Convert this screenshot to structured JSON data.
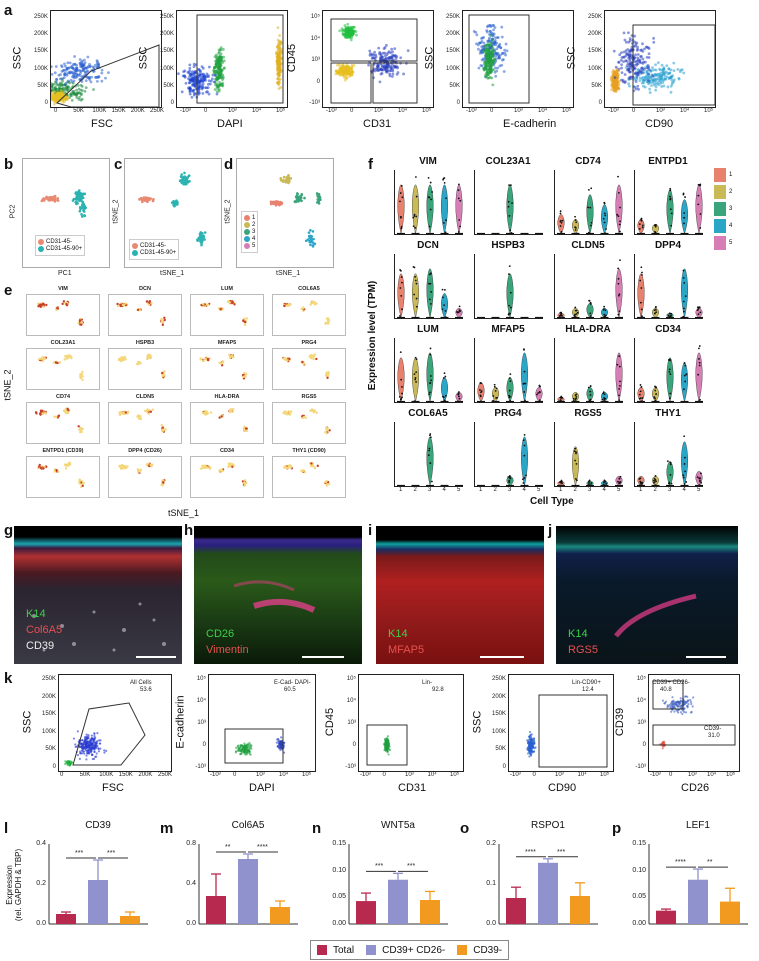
{
  "colors": {
    "total": "#b8294f",
    "cd39pos": "#8f92cc",
    "cd39neg": "#f29a1f",
    "cluster1": "#e8826f",
    "cluster2": "#c9b957",
    "cluster3": "#3aa47a",
    "cluster4": "#2ba6c7",
    "cluster5": "#d77fb4",
    "cd31neg": "#e88a72",
    "cd90pos": "#2bb3b1"
  },
  "panels": {
    "a": "a",
    "b": "b",
    "c": "c",
    "d": "d",
    "e": "e",
    "f": "f",
    "g": "g",
    "h": "h",
    "i": "i",
    "j": "j",
    "k": "k",
    "l": "l",
    "m": "m",
    "n": "n",
    "o": "o",
    "p": "p"
  },
  "row_a": {
    "plots": [
      {
        "y": "SSC",
        "x": "FSC",
        "yticks": [
          "250K",
          "200K",
          "150K",
          "100K",
          "50K",
          "0"
        ],
        "xticks": [
          "0",
          "50K",
          "100K",
          "150K",
          "200K",
          "250K"
        ]
      },
      {
        "y": "SSC",
        "x": "DAPI",
        "yticks": [
          "250K",
          "200K",
          "150K",
          "100K",
          "50K",
          "0"
        ],
        "xticks": [
          "-10³",
          "0",
          "10³",
          "10⁴",
          "10⁵"
        ]
      },
      {
        "y": "CD45",
        "x": "CD31",
        "yticks": [
          "10⁵",
          "10⁴",
          "10³",
          "0",
          "-10³"
        ],
        "xticks": [
          "-10³",
          "0",
          "10³",
          "10⁴",
          "10⁵"
        ]
      },
      {
        "y": "SSC",
        "x": "E-cadherin",
        "yticks": [
          "250K",
          "200K",
          "150K",
          "100K",
          "50K",
          "0"
        ],
        "xticks": [
          "-10³",
          "0",
          "10³",
          "10⁴",
          "10⁵"
        ]
      },
      {
        "y": "SSC",
        "x": "CD90",
        "yticks": [
          "250K",
          "200K",
          "150K",
          "100K",
          "50K",
          "0"
        ],
        "xticks": [
          "-10³",
          "0",
          "10³",
          "10⁴",
          "10⁵"
        ]
      }
    ]
  },
  "row_bcd": {
    "b": {
      "x": "PC1",
      "y": "PC2",
      "legend": [
        "CD31-45-",
        "CD31-45-90+"
      ]
    },
    "c": {
      "x": "tSNE_1",
      "y": "tSNE_2",
      "legend": [
        "CD31-45-",
        "CD31-45-90+"
      ]
    },
    "d": {
      "x": "tSNE_1",
      "y": "tSNE_2",
      "legend": [
        "1",
        "2",
        "3",
        "4",
        "5"
      ]
    }
  },
  "panel_e": {
    "genes": [
      "VIM",
      "DCN",
      "LUM",
      "COL6A5",
      "COL23A1",
      "HSPB3",
      "MFAP5",
      "PRG4",
      "CD74",
      "CLDN5",
      "HLA-DRA",
      "RGS5",
      "ENTPD1 (CD39)",
      "DPP4 (CD26)",
      "CD34",
      "THY1 (CD90)"
    ],
    "x": "tSNE_1",
    "y": "tSNE_2"
  },
  "panel_f": {
    "genes": [
      "VIM",
      "COL23A1",
      "CD74",
      "ENTPD1",
      "DCN",
      "HSPB3",
      "CLDN5",
      "DPP4",
      "LUM",
      "MFAP5",
      "HLA-DRA",
      "CD34",
      "COL6A5",
      "PRG4",
      "RGS5",
      "THY1"
    ],
    "ylabel": "Expression level (TPM)",
    "xlabel": "Cell Type",
    "xticks": [
      "1",
      "2",
      "3",
      "4",
      "5"
    ],
    "legend": [
      "1",
      "2",
      "3",
      "4",
      "5"
    ]
  },
  "micrographs": {
    "g": {
      "lines": [
        "K14",
        "Col6A5",
        "CD39"
      ]
    },
    "h": {
      "lines": [
        "CD26",
        "Vimentin"
      ]
    },
    "i": {
      "lines": [
        "K14",
        "MFAP5"
      ]
    },
    "j": {
      "lines": [
        "K14",
        "RGS5"
      ]
    }
  },
  "row_k": {
    "plots": [
      {
        "y": "SSC",
        "x": "FSC",
        "gate": "All Cells",
        "pct": "53.6",
        "yticks": [
          "250K",
          "200K",
          "150K",
          "100K",
          "50K",
          "0"
        ],
        "xticks": [
          "0",
          "50K",
          "100K",
          "150K",
          "200K",
          "250K"
        ]
      },
      {
        "y": "E-cadherin",
        "x": "DAPI",
        "gate": "E-Cad- DAPI-",
        "pct": "60.5",
        "yticks": [
          "10⁵",
          "10⁴",
          "10³",
          "0",
          "-10³"
        ],
        "xticks": [
          "-10³",
          "0",
          "10³",
          "10⁴",
          "10⁵"
        ]
      },
      {
        "y": "CD45",
        "x": "CD31",
        "gate": "Lin-",
        "pct": "92.8",
        "yticks": [
          "10⁵",
          "10⁴",
          "10³",
          "0",
          "-10³"
        ],
        "xticks": [
          "-10³",
          "0",
          "10³",
          "10⁴",
          "10⁵"
        ]
      },
      {
        "y": "SSC",
        "x": "CD90",
        "gate": "Lin-CD90+",
        "pct": "12.4",
        "yticks": [
          "250K",
          "200K",
          "150K",
          "100K",
          "50K",
          "0"
        ],
        "xticks": [
          "-10³",
          "0",
          "10³",
          "10⁴",
          "10⁵"
        ]
      },
      {
        "y": "CD39",
        "x": "CD26",
        "gate": "CD39+ CD26-",
        "pct": "40.8",
        "gate2": "CD39-",
        "pct2": "31.0",
        "yticks": [
          "10⁵",
          "10⁴",
          "10³",
          "0",
          "-10³"
        ],
        "xticks": [
          "-10³",
          "0",
          "10³",
          "10⁴",
          "10⁵"
        ]
      }
    ]
  },
  "chart_data": [
    {
      "type": "bar",
      "title": "CD39",
      "categories": [
        "Total",
        "CD39+ CD26-",
        "CD39-"
      ],
      "values": [
        0.05,
        0.22,
        0.04
      ],
      "errors": [
        0.01,
        0.1,
        0.02
      ],
      "ylim": [
        0,
        0.4
      ],
      "yticks": [
        "0.0",
        "0.2",
        "0.4"
      ],
      "ylabel": "Expression\n(rel. GAPDH & TBP)",
      "sig": [
        "***",
        "***"
      ]
    },
    {
      "type": "bar",
      "title": "Col6A5",
      "categories": [
        "Total",
        "CD39+ CD26-",
        "CD39-"
      ],
      "values": [
        0.28,
        0.65,
        0.17
      ],
      "errors": [
        0.22,
        0.05,
        0.06
      ],
      "ylim": [
        0,
        0.8
      ],
      "yticks": [
        "0.0",
        "0.4",
        "0.8"
      ],
      "sig": [
        "**",
        "****"
      ]
    },
    {
      "type": "bar",
      "title": "WNT5a",
      "categories": [
        "Total",
        "CD39+ CD26-",
        "CD39-"
      ],
      "values": [
        0.043,
        0.083,
        0.045
      ],
      "errors": [
        0.015,
        0.012,
        0.016
      ],
      "ylim": [
        0,
        0.15
      ],
      "yticks": [
        "0.00",
        "0.05",
        "0.10",
        "0.15"
      ],
      "sig": [
        "***",
        "***"
      ]
    },
    {
      "type": "bar",
      "title": "RSPO1",
      "categories": [
        "Total",
        "CD39+ CD26-",
        "CD39-"
      ],
      "values": [
        0.065,
        0.153,
        0.07
      ],
      "errors": [
        0.027,
        0.01,
        0.033
      ],
      "ylim": [
        0,
        0.2
      ],
      "yticks": [
        "0.0",
        "0.1",
        "0.2"
      ],
      "sig": [
        "****",
        "***"
      ]
    },
    {
      "type": "bar",
      "title": "LEF1",
      "categories": [
        "Total",
        "CD39+ CD26-",
        "CD39-"
      ],
      "values": [
        0.025,
        0.083,
        0.042
      ],
      "errors": [
        0.003,
        0.02,
        0.025
      ],
      "ylim": [
        0,
        0.15
      ],
      "yticks": [
        "0.00",
        "0.05",
        "0.10",
        "0.15"
      ],
      "sig": [
        "****",
        "**"
      ]
    }
  ],
  "key": {
    "items": [
      "Total",
      "CD39+ CD26-",
      "CD39-"
    ]
  }
}
